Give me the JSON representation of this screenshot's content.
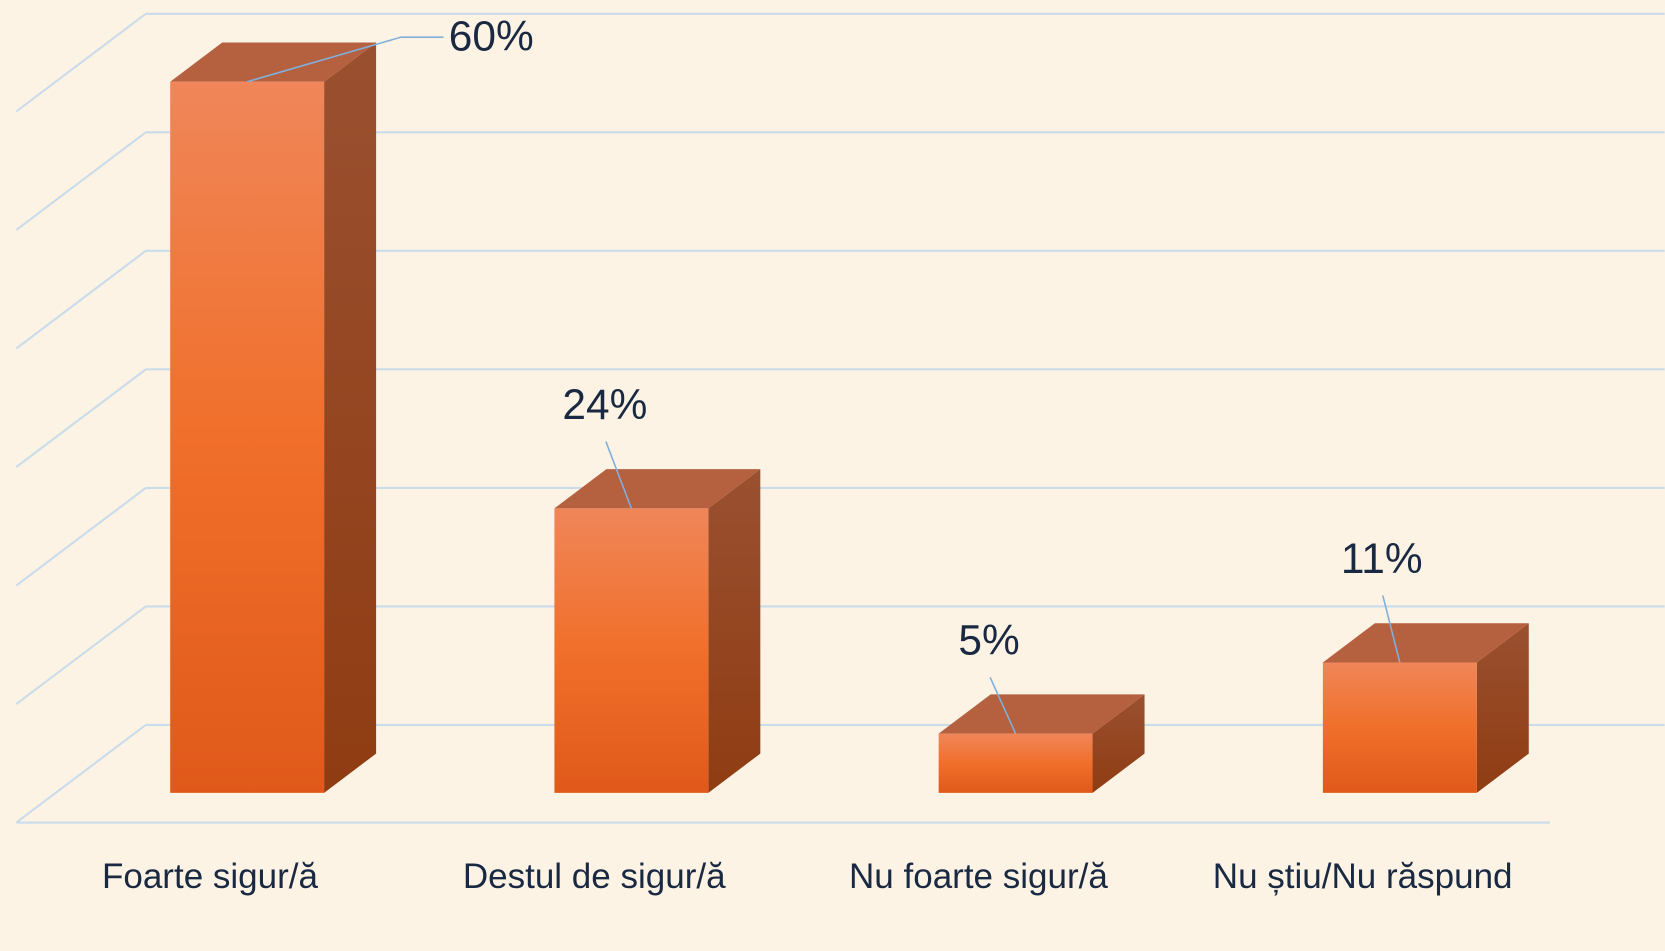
{
  "chart_data": {
    "type": "bar3d",
    "categories": [
      "Foarte sigur/ă",
      "Destul de sigur/ă",
      "Nu foarte sigur/ă",
      "Nu știu/Nu răspund"
    ],
    "values": [
      60,
      24,
      5,
      11
    ],
    "value_labels": [
      "60%",
      "24%",
      "5%",
      "11%"
    ],
    "color": "#ec6a2c",
    "ylim": [
      0,
      60
    ],
    "yticks": [
      0,
      10,
      20,
      30,
      40,
      50,
      60
    ],
    "grid": true
  }
}
